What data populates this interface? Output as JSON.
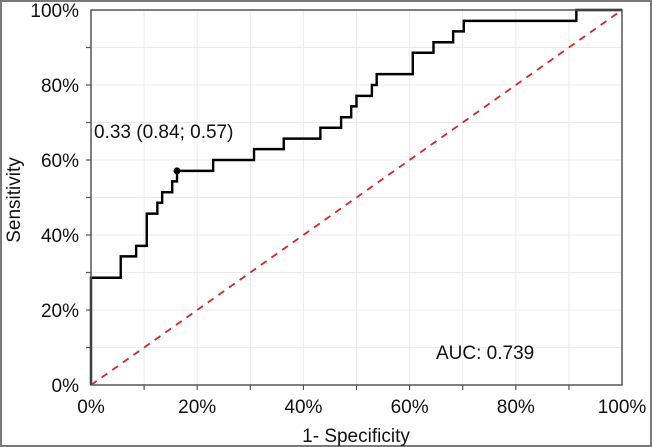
{
  "chart_data": {
    "type": "line",
    "xlabel": "1- Specificity",
    "ylabel": "Sensitivity",
    "xlim": [
      0,
      100
    ],
    "ylim": [
      0,
      100
    ],
    "x_ticks": [
      "0%",
      "20%",
      "40%",
      "60%",
      "80%",
      "100%"
    ],
    "y_ticks": [
      "0%",
      "20%",
      "40%",
      "60%",
      "80%",
      "100%"
    ],
    "grid": true,
    "grid_step": 10,
    "series": [
      {
        "style": "step",
        "color": "#000000",
        "x": [
          0,
          0,
          5.6,
          5.6,
          8.5,
          8.5,
          10.5,
          10.5,
          12.5,
          12.5,
          13.4,
          13.4,
          15.3,
          15.3,
          16.2,
          16.2,
          23,
          23,
          30.7,
          30.7,
          36.3,
          36.3,
          43.2,
          43.2,
          47.1,
          47.1,
          49,
          49,
          50,
          50,
          52.9,
          52.9,
          53.8,
          53.8,
          60.6,
          60.6,
          64.5,
          64.5,
          68.2,
          68.2,
          70.2,
          70.2,
          91.4,
          91.4,
          100
        ],
        "y": [
          0,
          28.6,
          28.6,
          34.3,
          34.3,
          37.1,
          37.1,
          45.7,
          45.7,
          48.6,
          48.6,
          51.4,
          51.4,
          54.3,
          54.3,
          57.1,
          57.1,
          60,
          60,
          62.9,
          62.9,
          65.7,
          65.7,
          68.6,
          68.6,
          71.4,
          71.4,
          74.3,
          74.3,
          77.1,
          77.1,
          80,
          80,
          82.9,
          82.9,
          88.6,
          88.6,
          91.4,
          91.4,
          94.3,
          94.3,
          97.1,
          97.1,
          100,
          100
        ]
      },
      {
        "style": "dashed",
        "color": "#d62728",
        "x": [
          0,
          100
        ],
        "y": [
          0,
          100
        ]
      }
    ],
    "marker": {
      "x": 16.2,
      "y": 57.1
    },
    "annotations": {
      "cutoff": "0.33 (0.84; 0.57)",
      "auc": "AUC: 0.739"
    }
  }
}
